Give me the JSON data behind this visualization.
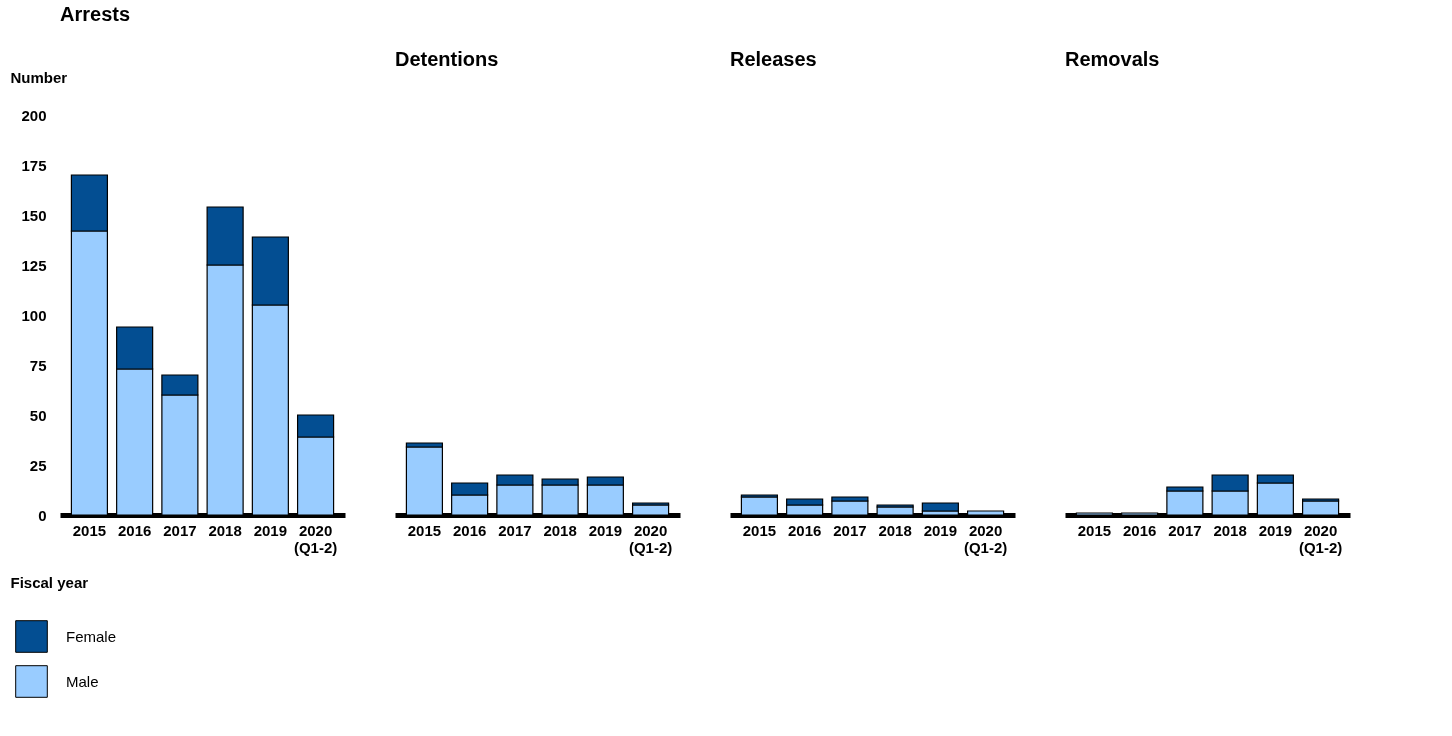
{
  "chart_data": [
    {
      "type": "bar",
      "title": "Arrests",
      "ylabel": "Number",
      "xlabel": "Fiscal year",
      "categories": [
        "2015",
        "2016",
        "2017",
        "2018",
        "2019",
        "2020\n(Q1-2)"
      ],
      "stacked": true,
      "ylim": [
        0,
        200
      ],
      "yticks": [
        0,
        25,
        50,
        75,
        100,
        125,
        150,
        175,
        200
      ],
      "grid": false,
      "legend": "bottom left",
      "series": [
        {
          "name": "Male",
          "color": "#99ccff",
          "values": [
            142,
            73,
            60,
            125,
            105,
            39
          ]
        },
        {
          "name": "Female",
          "color": "#034e92",
          "values": [
            28,
            21,
            10,
            29,
            34,
            11
          ]
        }
      ]
    },
    {
      "type": "bar",
      "title": "Detentions",
      "categories": [
        "2015",
        "2016",
        "2017",
        "2018",
        "2019",
        "2020\n(Q1-2)"
      ],
      "stacked": true,
      "ylim": [
        0,
        200
      ],
      "grid": false,
      "tick_labels": "x",
      "series": [
        {
          "color": "#99ccff",
          "values": [
            34,
            10,
            15,
            15,
            15,
            5
          ]
        },
        {
          "color": "#034e92",
          "values": [
            2,
            6,
            5,
            3,
            4,
            1
          ]
        }
      ]
    },
    {
      "type": "bar",
      "title": "Releases",
      "categories": [
        "2015",
        "2016",
        "2017",
        "2018",
        "2019",
        "2020\n(Q1-2)"
      ],
      "stacked": true,
      "ylim": [
        0,
        200
      ],
      "grid": false,
      "tick_labels": "x",
      "series": [
        {
          "color": "#99ccff",
          "values": [
            9,
            5,
            7,
            4,
            2,
            2
          ]
        },
        {
          "color": "#034e92",
          "values": [
            1,
            3,
            2,
            1,
            4,
            0
          ]
        }
      ]
    },
    {
      "type": "bar",
      "title": "Removals",
      "categories": [
        "2015",
        "2016",
        "2017",
        "2018",
        "2019",
        "2020\n(Q1-2)"
      ],
      "stacked": true,
      "ylim": [
        0,
        200
      ],
      "grid": false,
      "tick_labels": "x",
      "series": [
        {
          "color": "#99ccff",
          "values": [
            1,
            1,
            12,
            12,
            16,
            7
          ]
        },
        {
          "color": "#034e92",
          "values": [
            0,
            0,
            2,
            8,
            4,
            1
          ]
        }
      ]
    }
  ]
}
